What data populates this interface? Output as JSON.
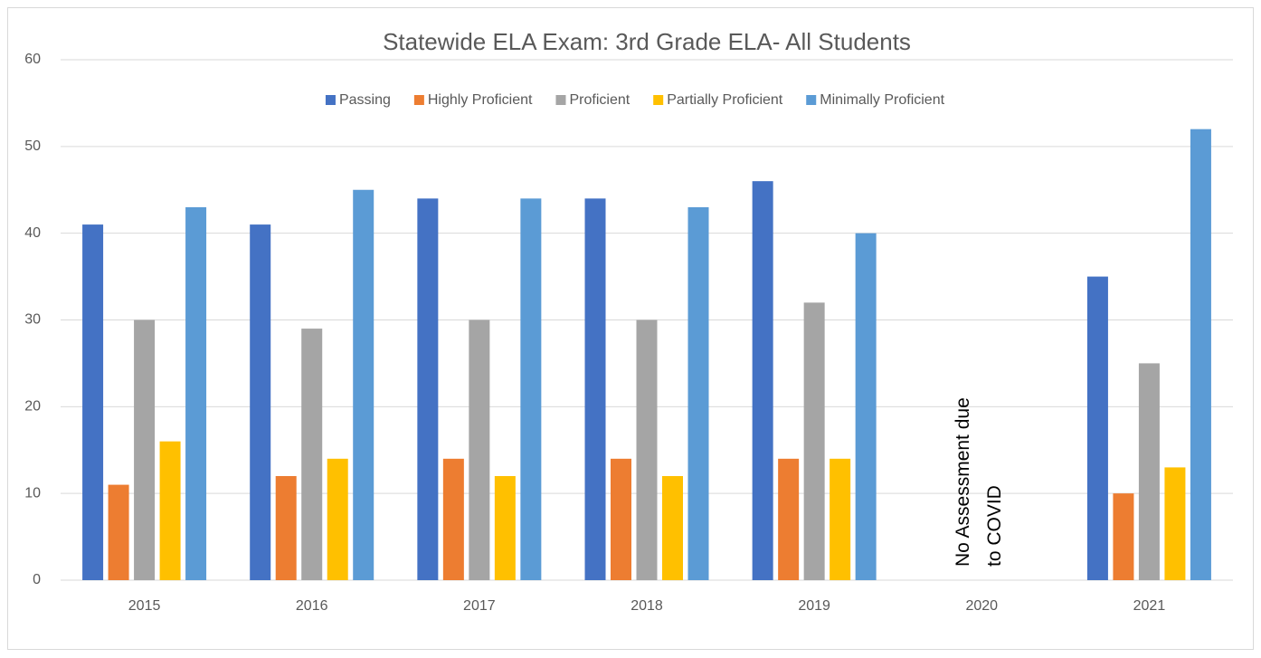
{
  "chart_data": {
    "type": "bar",
    "title": "Statewide ELA Exam: 3rd Grade ELA- All Students",
    "categories": [
      "2015",
      "2016",
      "2017",
      "2018",
      "2019",
      "2020",
      "2021"
    ],
    "series": [
      {
        "name": "Passing",
        "color": "#4472c4",
        "values": [
          41,
          41,
          44,
          44,
          46,
          null,
          35
        ]
      },
      {
        "name": "Highly Proficient",
        "color": "#ed7d31",
        "values": [
          11,
          12,
          14,
          14,
          14,
          null,
          10
        ]
      },
      {
        "name": "Proficient",
        "color": "#a5a5a5",
        "values": [
          30,
          29,
          30,
          30,
          32,
          null,
          25
        ]
      },
      {
        "name": "Partially Proficient",
        "color": "#ffc000",
        "values": [
          16,
          14,
          12,
          12,
          14,
          null,
          13
        ]
      },
      {
        "name": "Minimally Proficient",
        "color": "#5b9bd5",
        "values": [
          43,
          45,
          44,
          43,
          40,
          null,
          52
        ]
      }
    ],
    "annotation": [
      "No Assessment due",
      "to COVID"
    ],
    "ylim": [
      0,
      60
    ],
    "yticks": [
      0,
      10,
      20,
      30,
      40,
      50,
      60
    ],
    "grid": true,
    "legend": "top"
  }
}
